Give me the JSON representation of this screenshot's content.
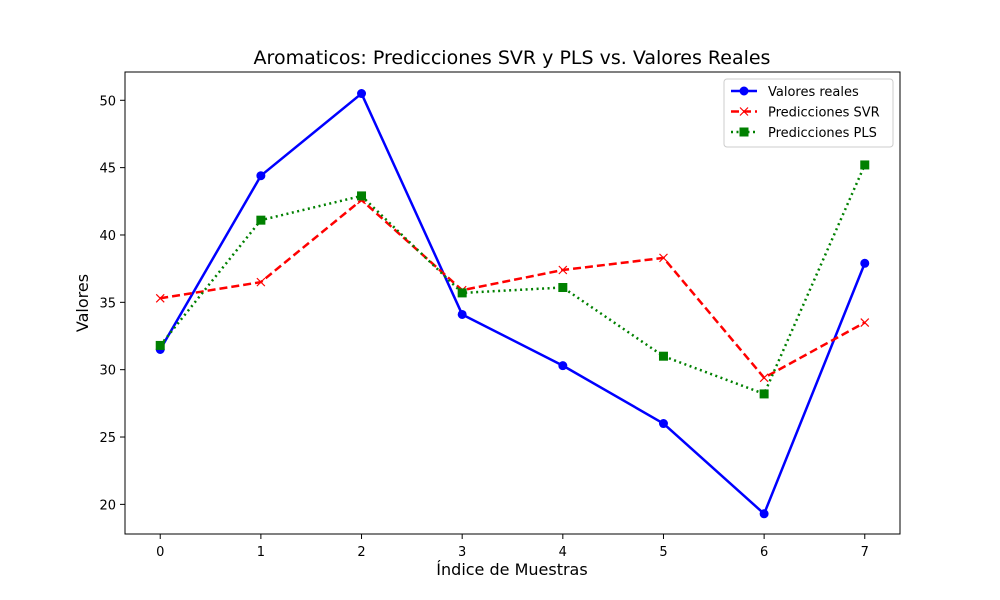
{
  "chart_data": {
    "type": "line",
    "title": "Aromaticos: Predicciones SVR y PLS vs. Valores Reales",
    "xlabel": "Índice de Muestras",
    "ylabel": "Valores",
    "x": [
      0,
      1,
      2,
      3,
      4,
      5,
      6,
      7
    ],
    "xticks": [
      "0",
      "1",
      "2",
      "3",
      "4",
      "5",
      "6",
      "7"
    ],
    "yticks": [
      20,
      25,
      30,
      35,
      40,
      45,
      50
    ],
    "xlim": [
      -0.35,
      7.35
    ],
    "ylim": [
      17.8,
      52.1
    ],
    "grid": false,
    "legend_position": "top-right",
    "series": [
      {
        "name": "Valores reales",
        "values": [
          31.5,
          44.4,
          50.5,
          34.1,
          30.3,
          26.0,
          19.3,
          37.9
        ],
        "color": "#0000ff",
        "marker": "circle",
        "line_style": "solid"
      },
      {
        "name": "Predicciones SVR",
        "values": [
          35.3,
          36.5,
          42.6,
          35.9,
          37.4,
          38.3,
          29.4,
          33.5
        ],
        "color": "#ff0000",
        "marker": "x",
        "line_style": "dashed"
      },
      {
        "name": "Predicciones PLS",
        "values": [
          31.8,
          41.1,
          42.9,
          35.7,
          36.1,
          31.0,
          28.2,
          45.2
        ],
        "color": "#008000",
        "marker": "square",
        "line_style": "dotted"
      }
    ]
  }
}
